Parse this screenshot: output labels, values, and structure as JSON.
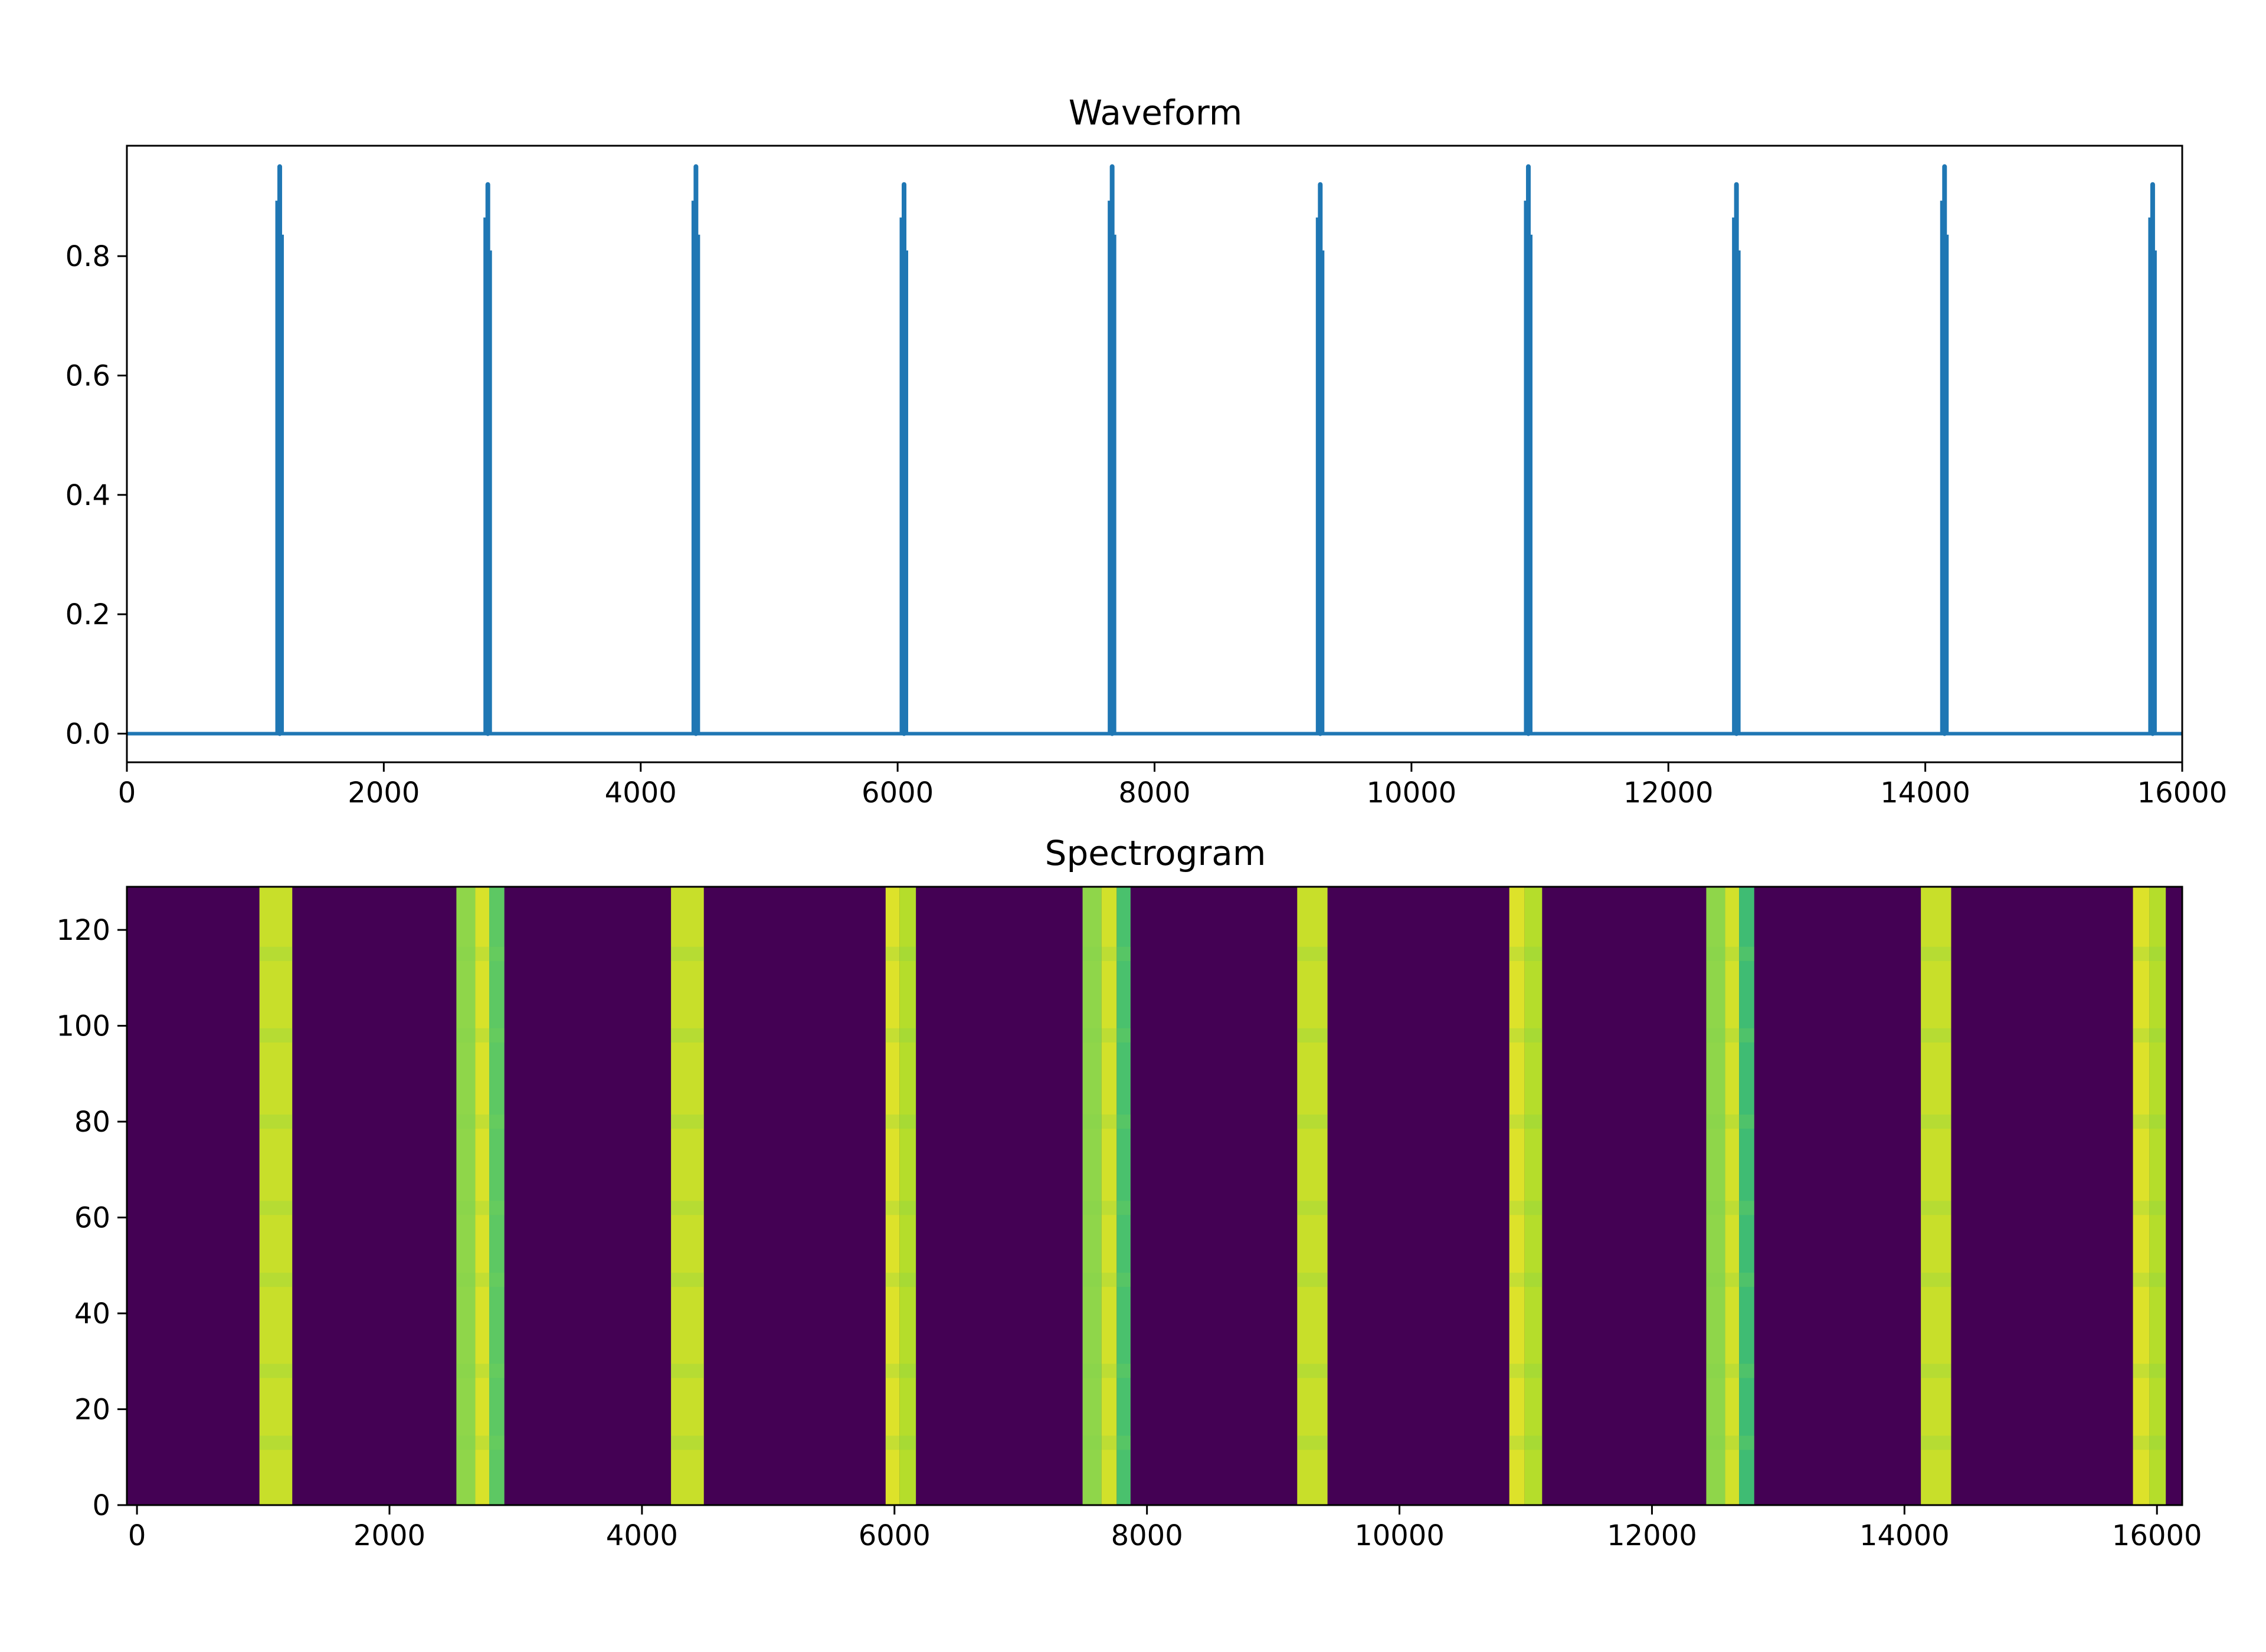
{
  "chart_data": [
    {
      "type": "line",
      "title": "Waveform",
      "xlabel": "",
      "ylabel": "",
      "xlim": [
        0,
        16000
      ],
      "ylim": [
        -0.048,
        0.985
      ],
      "xticks": [
        "0",
        "2000",
        "4000",
        "6000",
        "8000",
        "10000",
        "12000",
        "14000",
        "16000"
      ],
      "yticks": [
        "0.0",
        "0.2",
        "0.4",
        "0.6",
        "0.8"
      ],
      "grid": false,
      "color": "#1f77b4",
      "baseline": 0.0,
      "pulses": [
        {
          "x": 1190,
          "peak": 0.95
        },
        {
          "x": 2810,
          "peak": 0.92
        },
        {
          "x": 4430,
          "peak": 0.95
        },
        {
          "x": 6050,
          "peak": 0.92
        },
        {
          "x": 7670,
          "peak": 0.95
        },
        {
          "x": 9290,
          "peak": 0.92
        },
        {
          "x": 10910,
          "peak": 0.95
        },
        {
          "x": 12530,
          "peak": 0.92
        },
        {
          "x": 14150,
          "peak": 0.95
        },
        {
          "x": 15770,
          "peak": 0.92
        }
      ]
    },
    {
      "type": "heatmap",
      "title": "Spectrogram",
      "xlabel": "",
      "ylabel": "",
      "xlim": [
        -80,
        16200
      ],
      "ylim": [
        0,
        129
      ],
      "xticks": [
        "0",
        "2000",
        "4000",
        "6000",
        "8000",
        "10000",
        "12000",
        "14000",
        "16000"
      ],
      "yticks": [
        "0",
        "20",
        "40",
        "60",
        "80",
        "100",
        "120"
      ],
      "colormap": "viridis",
      "background": "#440154",
      "bands": [
        {
          "x_start": 970,
          "x_end": 1230,
          "segments": [
            {
              "x0": 970,
              "x1": 1230,
              "color": "#c8df2a"
            }
          ]
        },
        {
          "x_start": 2530,
          "x_end": 2910,
          "segments": [
            {
              "x0": 2530,
              "x1": 2680,
              "color": "#8fd64a"
            },
            {
              "x0": 2680,
              "x1": 2790,
              "color": "#d8e22a"
            },
            {
              "x0": 2790,
              "x1": 2910,
              "color": "#5dc863"
            }
          ]
        },
        {
          "x_start": 4230,
          "x_end": 4490,
          "segments": [
            {
              "x0": 4230,
              "x1": 4490,
              "color": "#c8df2a"
            }
          ]
        },
        {
          "x_start": 5930,
          "x_end": 6170,
          "segments": [
            {
              "x0": 5930,
              "x1": 6040,
              "color": "#dde22a"
            },
            {
              "x0": 6040,
              "x1": 6170,
              "color": "#b5dd2b"
            }
          ]
        },
        {
          "x_start": 7490,
          "x_end": 7870,
          "segments": [
            {
              "x0": 7490,
              "x1": 7640,
              "color": "#8fd64a"
            },
            {
              "x0": 7640,
              "x1": 7760,
              "color": "#d2e12b"
            },
            {
              "x0": 7760,
              "x1": 7870,
              "color": "#4ac16d"
            }
          ]
        },
        {
          "x_start": 9190,
          "x_end": 9430,
          "segments": [
            {
              "x0": 9190,
              "x1": 9430,
              "color": "#c8df2a"
            }
          ]
        },
        {
          "x_start": 10870,
          "x_end": 11130,
          "segments": [
            {
              "x0": 10870,
              "x1": 10990,
              "color": "#dde22a"
            },
            {
              "x0": 10990,
              "x1": 11130,
              "color": "#b5dd2b"
            }
          ]
        },
        {
          "x_start": 12430,
          "x_end": 12810,
          "segments": [
            {
              "x0": 12430,
              "x1": 12580,
              "color": "#8fd64a"
            },
            {
              "x0": 12580,
              "x1": 12690,
              "color": "#d2e12b"
            },
            {
              "x0": 12690,
              "x1": 12810,
              "color": "#3fbc73"
            }
          ]
        },
        {
          "x_start": 14130,
          "x_end": 14370,
          "segments": [
            {
              "x0": 14130,
              "x1": 14370,
              "color": "#c8df2a"
            }
          ]
        },
        {
          "x_start": 15810,
          "x_end": 16070,
          "segments": [
            {
              "x0": 15810,
              "x1": 15940,
              "color": "#dde22a"
            },
            {
              "x0": 15940,
              "x1": 16070,
              "color": "#b5dd2b"
            }
          ]
        }
      ]
    }
  ]
}
